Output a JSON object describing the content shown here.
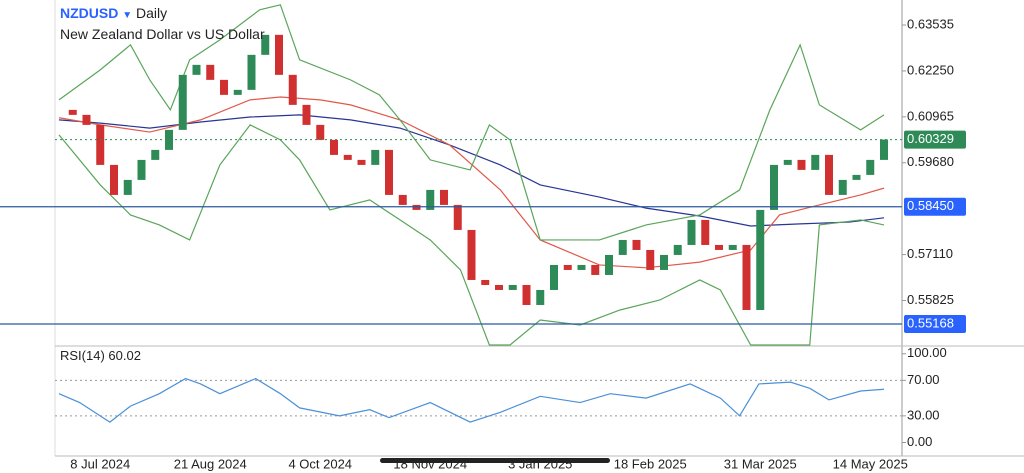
{
  "chart_data": [
    {
      "type": "candlestick",
      "title": "NZDUSD",
      "subtitle": "Daily",
      "description": "New Zealand Dollar vs US Dollar",
      "categories": [
        null,
        null,
        null,
        "8 Jul 2024",
        null,
        null,
        null,
        null,
        null,
        null,
        null,
        "21 Aug 2024",
        null,
        null,
        null,
        null,
        null,
        null,
        null,
        "4 Oct 2024",
        null,
        null,
        null,
        null,
        null,
        null,
        null,
        "18 Nov 2024",
        null,
        null,
        null,
        null,
        null,
        null,
        null,
        "3 Jan 2025",
        null,
        null,
        null,
        null,
        null,
        null,
        null,
        "18 Feb 2025",
        null,
        null,
        null,
        null,
        null,
        null,
        null,
        "31 Mar 2025",
        null,
        null,
        null,
        null,
        null,
        null,
        null,
        "14 May 2025",
        null
      ],
      "values": [
        0.6116,
        0.6102,
        0.6074,
        0.5962,
        0.5878,
        0.592,
        0.5976,
        0.6004,
        0.606,
        0.6214,
        0.6242,
        0.62,
        0.6158,
        0.6172,
        0.627,
        0.6326,
        0.6214,
        0.613,
        0.6074,
        0.6032,
        0.599,
        0.5976,
        0.5962,
        0.6004,
        0.5878,
        0.585,
        0.5836,
        0.5892,
        0.585,
        0.578,
        0.564,
        0.5626,
        0.5612,
        0.5626,
        0.557,
        0.5612,
        0.5682,
        0.5668,
        0.5682,
        0.5654,
        0.571,
        0.5752,
        0.5724,
        0.5668,
        0.571,
        0.5738,
        0.5808,
        0.5738,
        0.5724,
        0.5738,
        0.5556,
        0.5836,
        0.5962,
        0.5976,
        0.5948,
        0.599,
        0.5878,
        0.592,
        0.5934,
        0.5976,
        0.6033
      ],
      "up_color": "#2e8b57",
      "down_color": "#d03030",
      "overlays": [
        {
          "color": "#283593",
          "x": [
            0,
            3,
            6.6,
            10.3,
            13.9,
            17.5,
            21.2,
            24.8,
            28.4,
            32.1,
            35,
            39.3,
            42.7,
            46.6,
            50.3,
            53.9,
            57.5,
            60
          ],
          "values": [
            0.6088,
            0.6079,
            0.6065,
            0.6082,
            0.6096,
            0.6102,
            0.6088,
            0.6065,
            0.6018,
            0.5962,
            0.5906,
            0.5872,
            0.5841,
            0.5819,
            0.5791,
            0.5797,
            0.5802,
            0.5814
          ]
        },
        {
          "color": "#e0594a",
          "x": [
            0,
            3,
            6.6,
            10.3,
            13.9,
            16.1,
            19,
            21.2,
            24.8,
            28.4,
            32.1,
            35,
            39.3,
            42.7,
            46.6,
            50.3,
            52.4,
            55.3,
            58.3,
            60
          ],
          "values": [
            0.6094,
            0.6074,
            0.6054,
            0.6088,
            0.6144,
            0.6152,
            0.6144,
            0.613,
            0.6088,
            0.6018,
            0.5892,
            0.5752,
            0.5682,
            0.5674,
            0.569,
            0.5724,
            0.5822,
            0.585,
            0.5878,
            0.5897
          ]
        },
        {
          "color": "#5aa55a",
          "x": [
            0,
            3,
            5.2,
            6.6,
            8.1,
            9.5,
            11.7,
            14.6,
            16.1,
            17.5,
            21.2,
            23.3,
            24.8,
            27,
            29.9,
            31.3,
            32.8,
            35,
            39.3,
            42.7,
            46.6,
            49.5,
            51.7,
            53.9,
            55.3,
            58.3,
            60
          ],
          "values": [
            0.6144,
            0.6228,
            0.6298,
            0.62,
            0.6116,
            0.6256,
            0.6312,
            0.6396,
            0.641,
            0.6256,
            0.62,
            0.6158,
            0.6088,
            0.5976,
            0.5948,
            0.6074,
            0.6032,
            0.5752,
            0.5752,
            0.5794,
            0.5822,
            0.5892,
            0.6116,
            0.6298,
            0.613,
            0.606,
            0.6102
          ]
        },
        {
          "color": "#5aa55a",
          "x": [
            0,
            3,
            5.2,
            7.3,
            9.5,
            11.7,
            13.9,
            16.1,
            17.5,
            19.7,
            22.6,
            24.8,
            27,
            29.2,
            31.3,
            32.8,
            35,
            37.9,
            40.8,
            43.7,
            46.6,
            48.1,
            50.3,
            53.2,
            54.6,
            55.3,
            58.3,
            60
          ],
          "values": [
            0.6046,
            0.5906,
            0.5822,
            0.5794,
            0.5752,
            0.5962,
            0.6074,
            0.6032,
            0.5976,
            0.5836,
            0.5864,
            0.5808,
            0.5752,
            0.5668,
            0.5458,
            0.5458,
            0.5528,
            0.5514,
            0.5556,
            0.5584,
            0.564,
            0.5612,
            0.5458,
            0.5458,
            0.5458,
            0.5794,
            0.5808,
            0.5794
          ]
        }
      ],
      "ylim": [
        0.54552,
        0.64235
      ],
      "yticks": [
        0.63535,
        {
          "value": 0.6225,
          "label": "0.62250"
        },
        0.60965,
        {
          "value": 0.5968,
          "label": "0.59680"
        },
        {
          "value": 0.5711,
          "label": "0.57110"
        },
        0.55825
      ],
      "levels": [
        {
          "value": 0.5845,
          "label": "0.58450"
        },
        {
          "value": 0.55168,
          "label": "0.55168"
        }
      ],
      "current": {
        "value": 0.60329,
        "label": "0.60329"
      }
    },
    {
      "type": "line",
      "title": "RSI(14)",
      "value": 60.02,
      "color": "#4a90d9",
      "x": [
        0,
        1.5,
        3.7,
        5.2,
        7.3,
        9.2,
        10.3,
        11.7,
        14.3,
        16.1,
        17.5,
        20.4,
        22.6,
        24,
        27,
        29.9,
        32.1,
        35,
        37.9,
        40.1,
        42.7,
        45.9,
        48.1,
        49.5,
        50.9,
        53.2,
        54.6,
        56,
        58.3,
        60
      ],
      "values": [
        55,
        45,
        23,
        41,
        55,
        72,
        66,
        55,
        72,
        55,
        39,
        30,
        37,
        28,
        45,
        23,
        34,
        52,
        45,
        55,
        50,
        66,
        50,
        30,
        66,
        68,
        61,
        48,
        58,
        60.02
      ],
      "ylim": [
        -15.2,
        108.7
      ],
      "yticks": [
        {
          "value": 100,
          "label": "100.00"
        },
        {
          "value": 70,
          "label": "70.00"
        },
        {
          "value": 30,
          "label": "30.00"
        },
        {
          "value": 0,
          "label": "0.00"
        }
      ],
      "guides": [
        70,
        30
      ]
    }
  ]
}
